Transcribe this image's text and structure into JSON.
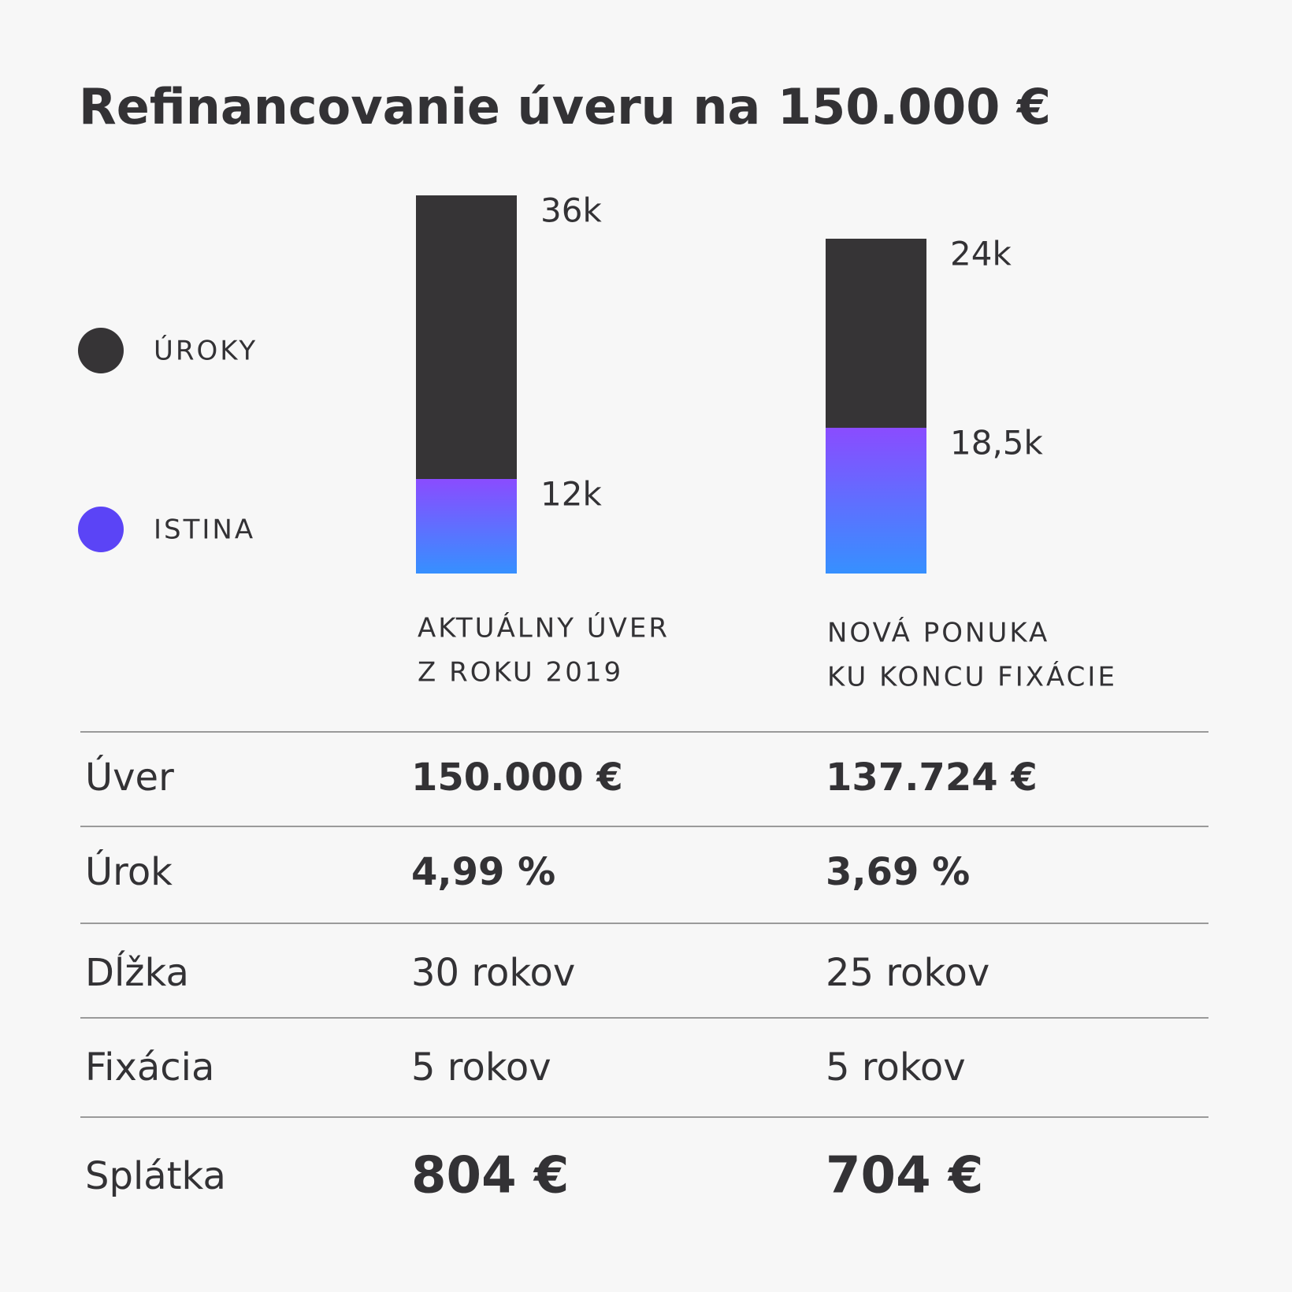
{
  "chart_data": {
    "type": "stacked-bar",
    "title": "Refinancovanie úveru na 150.000 €",
    "categories": [
      [
        "AKTUÁLNY ÚVER",
        "Z ROKU 2019"
      ],
      [
        "NOVÁ PONUKA",
        "KU KONCU FIXÁCIE"
      ]
    ],
    "series": [
      {
        "name": "ISTINA",
        "color": "#5b44f6",
        "gradient": [
          "#8a4cff",
          "#3690ff"
        ],
        "values": [
          12,
          18.5
        ],
        "value_labels": [
          "12k",
          "18,5k"
        ]
      },
      {
        "name": "ÚROKY",
        "color": "#363436",
        "values": [
          36,
          24
        ],
        "value_labels": [
          "36k",
          "24k"
        ]
      }
    ]
  },
  "table": {
    "rows": [
      [
        "Úver",
        "150.000 €",
        "137.724 €"
      ],
      [
        "Úrok",
        "4,99 %",
        "3,69 %"
      ],
      [
        "Dĺžka",
        "30 rokov",
        "25 rokov"
      ],
      [
        "Fixácia",
        "5 rokov",
        "5 rokov"
      ],
      [
        "Splátka",
        "804 €",
        "704 €"
      ]
    ]
  }
}
